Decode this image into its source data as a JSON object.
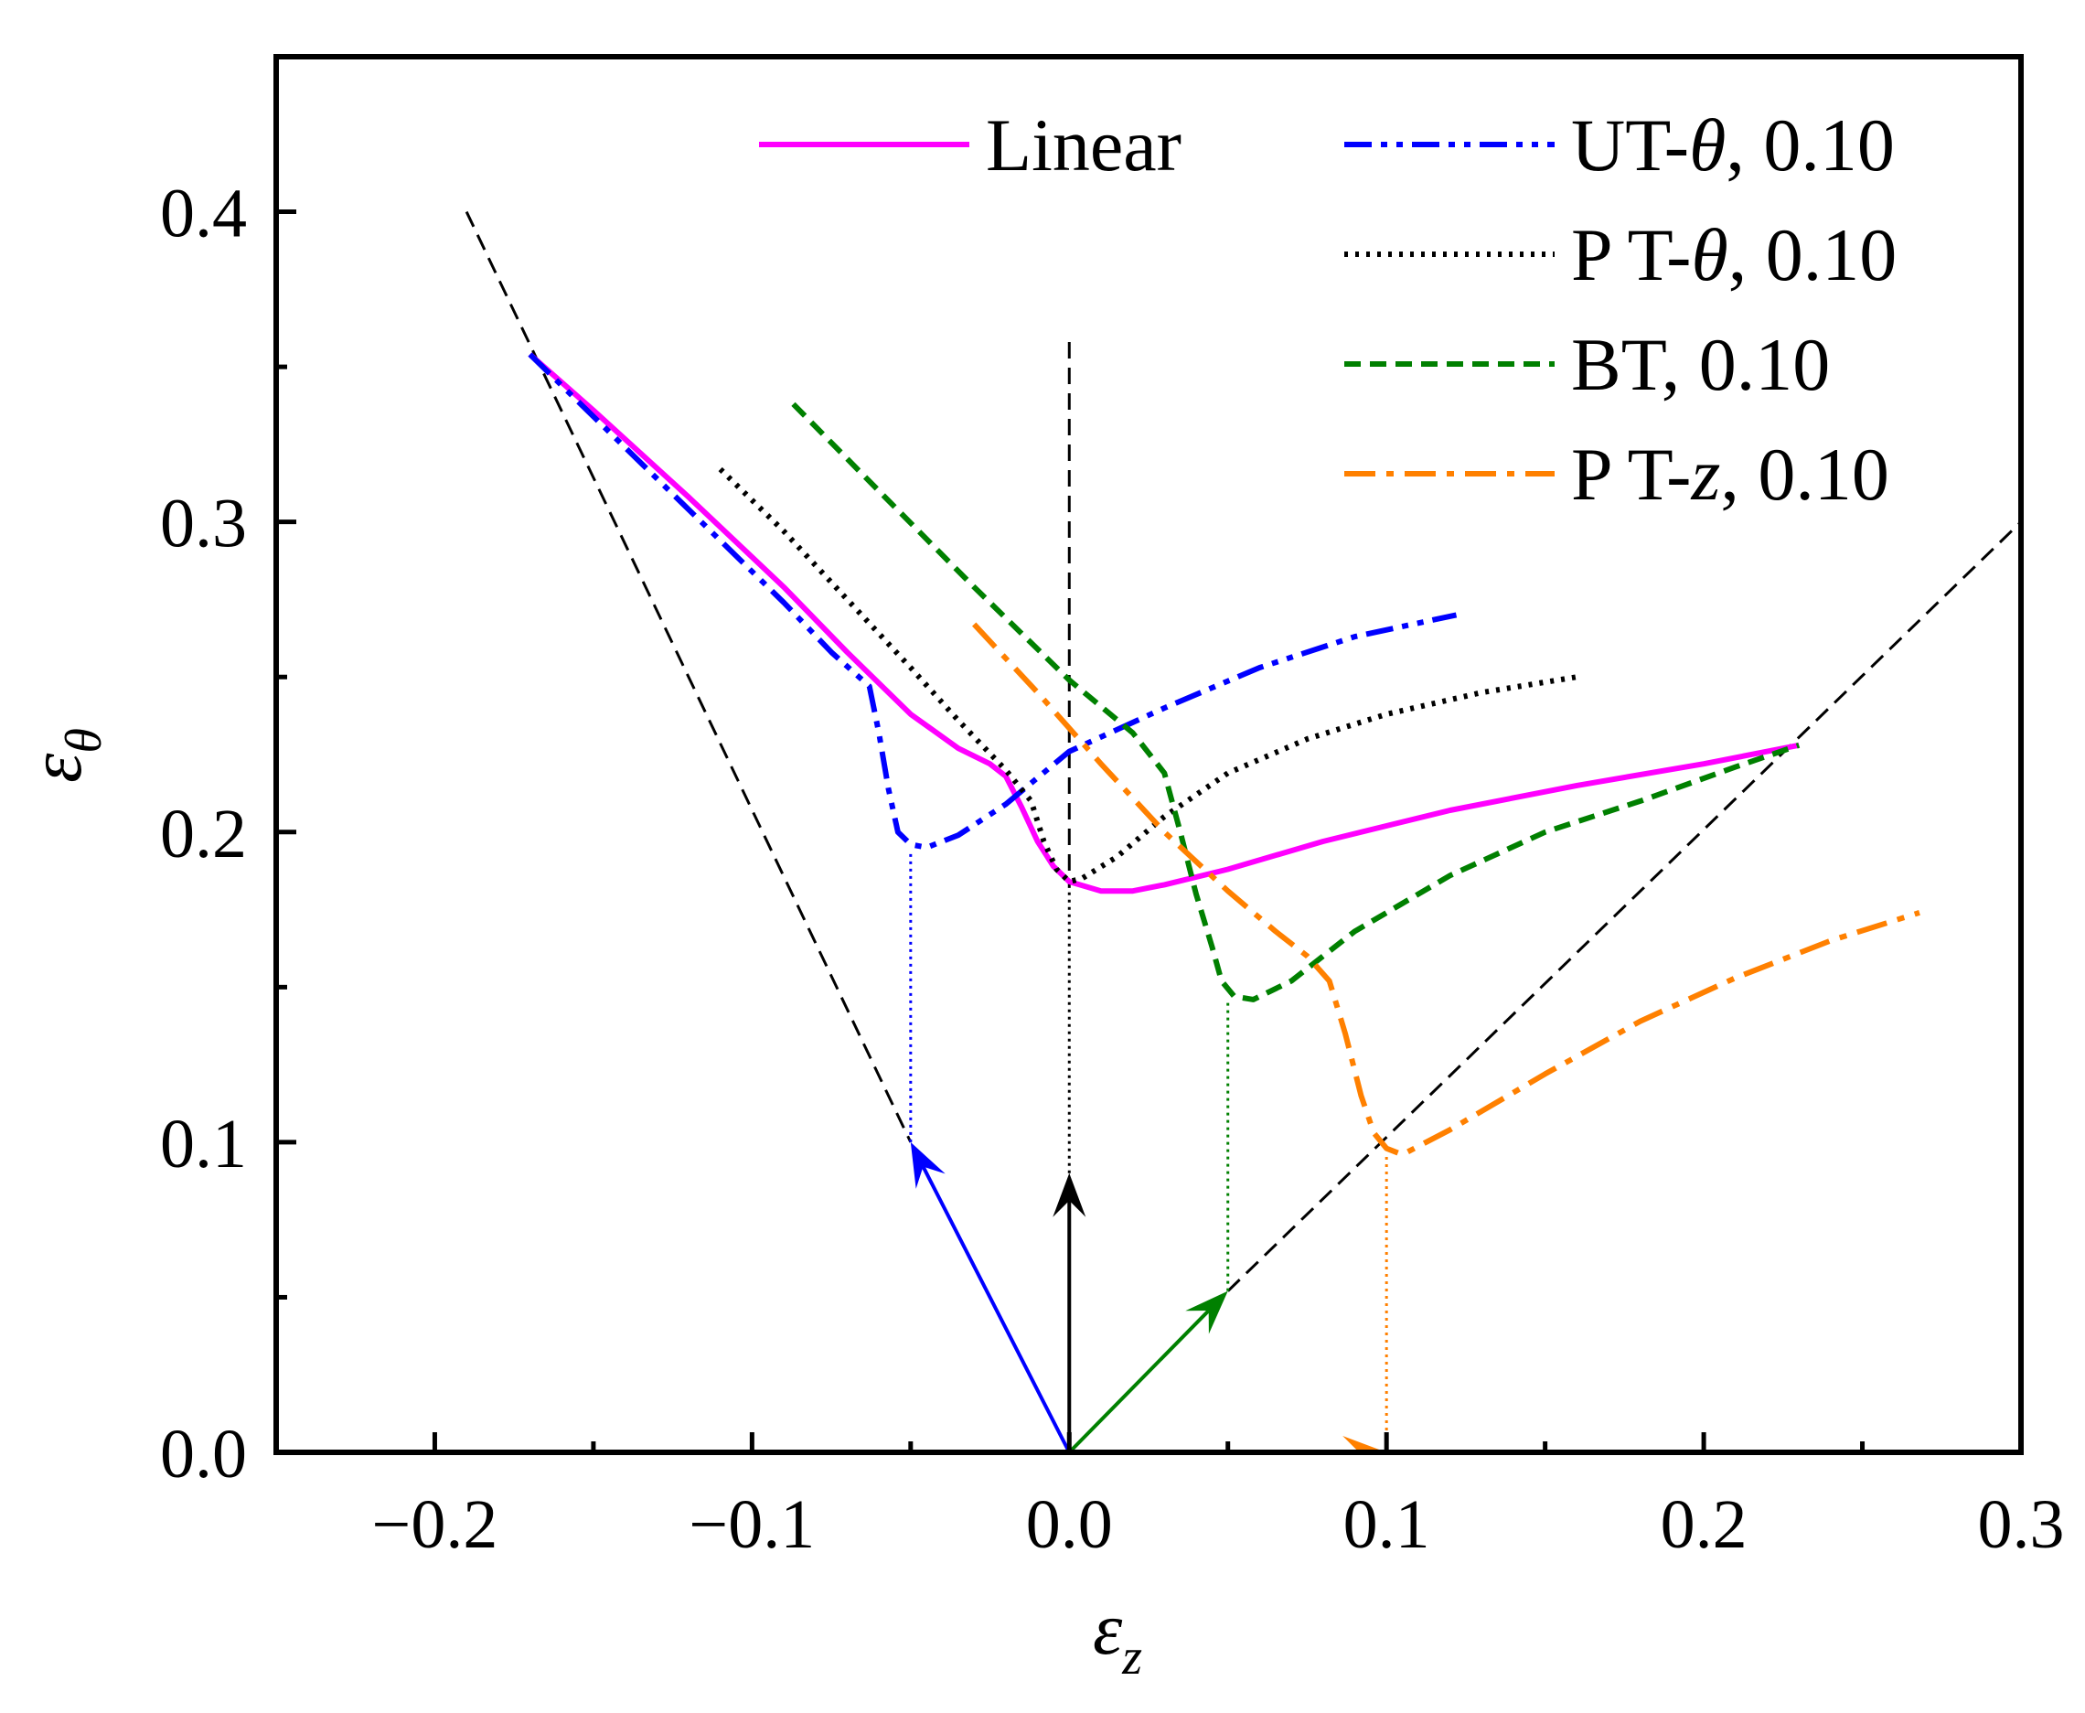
{
  "chart_data": {
    "type": "line",
    "title": "",
    "xlabel": "εz",
    "xlabel_symbol": "ε",
    "xlabel_subscript": "z",
    "ylabel": "εθ",
    "ylabel_symbol": "ε",
    "ylabel_subscript": "θ",
    "xlim": [
      -0.25,
      0.3
    ],
    "ylim": [
      0.0,
      0.45
    ],
    "xticks": [
      -0.2,
      -0.1,
      0.0,
      0.1,
      0.2,
      0.3
    ],
    "xtick_labels": [
      "−0.2",
      "−0.1",
      "0.0",
      "0.1",
      "0.2",
      "0.3"
    ],
    "yticks": [
      0.0,
      0.1,
      0.2,
      0.3,
      0.4
    ],
    "ytick_labels": [
      "0.0",
      "0.1",
      "0.2",
      "0.3",
      "0.4"
    ],
    "legend_position": "top-right",
    "series": [
      {
        "name": "Linear",
        "label_main": "Linear",
        "label_var": "",
        "label_suffix": "",
        "color": "#ff00ff",
        "dash": "solid",
        "x": [
          -0.17,
          -0.15,
          -0.12,
          -0.09,
          -0.07,
          -0.05,
          -0.035,
          -0.025,
          -0.02,
          -0.015,
          -0.01,
          -0.005,
          0.0,
          0.01,
          0.02,
          0.03,
          0.05,
          0.08,
          0.12,
          0.16,
          0.2,
          0.23
        ],
        "y": [
          0.354,
          0.336,
          0.308,
          0.279,
          0.258,
          0.238,
          0.227,
          0.222,
          0.218,
          0.208,
          0.197,
          0.189,
          0.184,
          0.181,
          0.181,
          0.183,
          0.188,
          0.197,
          0.207,
          0.215,
          0.222,
          0.228
        ]
      },
      {
        "name": "UT-θ, 0.10",
        "label_main": "UT-",
        "label_var": "θ",
        "label_suffix": ", 0.10",
        "color": "#0000ff",
        "dash": "dash-dot-dot",
        "x": [
          -0.17,
          -0.14,
          -0.11,
          -0.09,
          -0.075,
          -0.063,
          -0.06,
          -0.057,
          -0.054,
          -0.05,
          -0.045,
          -0.035,
          -0.02,
          0.0,
          0.03,
          0.06,
          0.09,
          0.122
        ],
        "y": [
          0.354,
          0.324,
          0.294,
          0.274,
          0.258,
          0.247,
          0.232,
          0.214,
          0.2,
          0.196,
          0.195,
          0.199,
          0.209,
          0.226,
          0.24,
          0.253,
          0.263,
          0.27
        ]
      },
      {
        "name": "P T-θ, 0.10",
        "label_main": "P T-",
        "label_var": "θ",
        "label_suffix": ", 0.10",
        "color": "#000000",
        "dash": "dotted",
        "x": [
          -0.11,
          -0.09,
          -0.07,
          -0.05,
          -0.035,
          -0.02,
          -0.012,
          -0.008,
          -0.004,
          0.0,
          0.004,
          0.015,
          0.03,
          0.05,
          0.075,
          0.1,
          0.13,
          0.16
        ],
        "y": [
          0.317,
          0.297,
          0.275,
          0.253,
          0.236,
          0.22,
          0.21,
          0.197,
          0.188,
          0.184,
          0.185,
          0.192,
          0.205,
          0.219,
          0.23,
          0.238,
          0.245,
          0.25
        ]
      },
      {
        "name": "BT,    0.10",
        "label_main": "BT,",
        "label_var": "",
        "label_suffix": "   0.10",
        "color": "#008000",
        "dash": "dashed",
        "x": [
          -0.087,
          -0.06,
          -0.03,
          0.0,
          0.02,
          0.03,
          0.035,
          0.04,
          0.045,
          0.048,
          0.052,
          0.058,
          0.07,
          0.09,
          0.12,
          0.15,
          0.18,
          0.21,
          0.23
        ],
        "y": [
          0.338,
          0.31,
          0.279,
          0.249,
          0.232,
          0.219,
          0.2,
          0.18,
          0.163,
          0.152,
          0.147,
          0.146,
          0.152,
          0.168,
          0.186,
          0.2,
          0.21,
          0.221,
          0.228
        ]
      },
      {
        "name": "P T-z, 0.10",
        "label_main": "P T-",
        "label_var": "z",
        "label_suffix": ", 0.10",
        "color": "#ff8000",
        "dash": "dash-dot",
        "x": [
          -0.03,
          -0.01,
          0.01,
          0.03,
          0.05,
          0.065,
          0.075,
          0.082,
          0.087,
          0.092,
          0.096,
          0.1,
          0.105,
          0.12,
          0.15,
          0.18,
          0.21,
          0.24,
          0.268
        ],
        "y": [
          0.267,
          0.245,
          0.222,
          0.2,
          0.181,
          0.168,
          0.16,
          0.152,
          0.135,
          0.115,
          0.103,
          0.098,
          0.096,
          0.104,
          0.122,
          0.139,
          0.153,
          0.165,
          0.174
        ]
      }
    ],
    "reference_lines": [
      {
        "name": "left-boundary",
        "color": "#000000",
        "dash": "dashed",
        "x": [
          -0.19,
          -0.05
        ],
        "y": [
          0.4,
          0.1
        ]
      },
      {
        "name": "vertical-axis-line",
        "color": "#000000",
        "dash": "dashed",
        "x": [
          0.0,
          0.0
        ],
        "y": [
          0.358,
          0.182
        ]
      },
      {
        "name": "right-boundary",
        "color": "#000000",
        "dash": "dashed",
        "x": [
          0.05,
          0.3
        ],
        "y": [
          0.052,
          0.3
        ]
      }
    ],
    "vertical_drops": [
      {
        "color": "#0000ff",
        "x": [
          -0.05,
          -0.05
        ],
        "y": [
          0.1,
          0.193
        ]
      },
      {
        "color": "#000000",
        "x": [
          0.0,
          0.0
        ],
        "y": [
          0.09,
          0.182
        ]
      },
      {
        "color": "#008000",
        "x": [
          0.05,
          0.05
        ],
        "y": [
          0.052,
          0.146
        ]
      },
      {
        "color": "#ff8000",
        "x": [
          0.1,
          0.1
        ],
        "y": [
          0.0,
          0.096
        ]
      }
    ],
    "arrows": [
      {
        "name": "arrow-ut-theta",
        "color": "#0000ff",
        "from": [
          0.0,
          0.0
        ],
        "to": [
          -0.05,
          0.1
        ]
      },
      {
        "name": "arrow-pt-theta",
        "color": "#000000",
        "from": [
          0.0,
          0.0
        ],
        "to": [
          0.0,
          0.09
        ]
      },
      {
        "name": "arrow-bt",
        "color": "#008000",
        "from": [
          0.0,
          0.0
        ],
        "to": [
          0.05,
          0.052
        ]
      },
      {
        "name": "arrow-pt-z",
        "color": "#ff8000",
        "from": [
          0.0,
          0.0
        ],
        "to": [
          0.1,
          0.0
        ]
      }
    ]
  }
}
